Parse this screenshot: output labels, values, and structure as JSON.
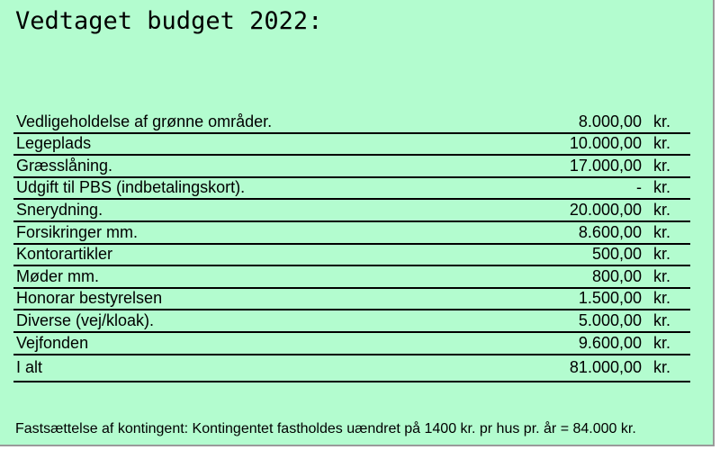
{
  "title": "Vedtaget budget 2022:",
  "rows": [
    {
      "label": "Vedligeholdelse af grønne områder.",
      "amount": "8.000,00",
      "unit": "kr."
    },
    {
      "label": "Legeplads",
      "amount": "10.000,00",
      "unit": "kr."
    },
    {
      "label": "Græsslåning.",
      "amount": "17.000,00",
      "unit": "kr."
    },
    {
      "label": "Udgift til PBS (indbetalingskort).",
      "amount": "-",
      "unit": "kr."
    },
    {
      "label": "Snerydning.",
      "amount": "20.000,00",
      "unit": "kr."
    },
    {
      "label": "Forsikringer mm.",
      "amount": "8.600,00",
      "unit": "kr."
    },
    {
      "label": "Kontorartikler",
      "amount": "500,00",
      "unit": "kr."
    },
    {
      "label": "Møder mm.",
      "amount": "800,00",
      "unit": "kr."
    },
    {
      "label": "Honorar bestyrelsen",
      "amount": "1.500,00",
      "unit": "kr."
    },
    {
      "label": "Diverse (vej/kloak).",
      "amount": "5.000,00",
      "unit": "kr."
    },
    {
      "label": "Vejfonden",
      "amount": "9.600,00",
      "unit": "kr."
    },
    {
      "label": "I alt",
      "amount": "81.000,00",
      "unit": "kr."
    }
  ],
  "note": "Fastsættelse af kontingent: Kontingentet fastholdes uændret på 1400 kr. pr hus pr. år = 84.000 kr."
}
